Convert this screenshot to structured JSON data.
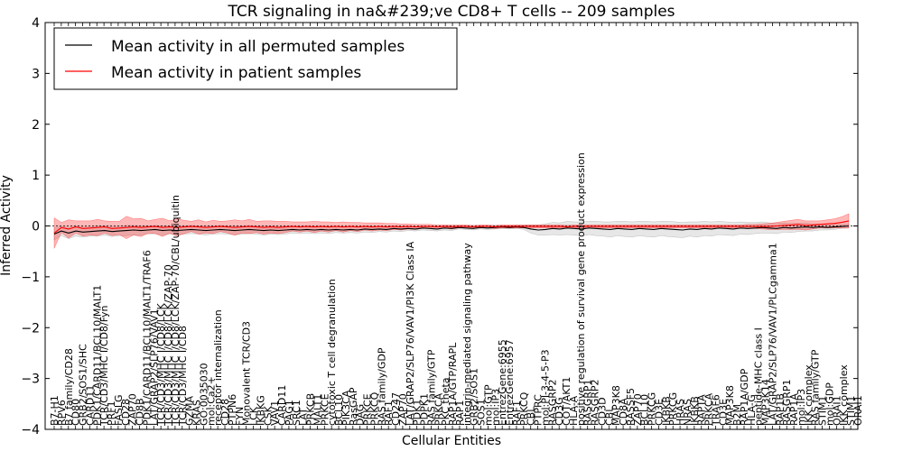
{
  "chart_data": {
    "type": "line",
    "title": "TCR signaling in na&#239;ve CD8+ T cells -- 209 samples",
    "xlabel": "Cellular Entities",
    "ylabel": "Inferred Activity",
    "ylim": [
      -4,
      4
    ],
    "yticks": [
      -4,
      -3,
      -2,
      -1,
      0,
      1,
      2,
      3,
      4
    ],
    "ytick_labels": [
      "−4",
      "−3",
      "−2",
      "−1",
      "0",
      "1",
      "2",
      "3",
      "4"
    ],
    "legend": {
      "placement": "top-left",
      "entries": [
        {
          "label": "Mean activity in all permuted samples",
          "color": "#000000"
        },
        {
          "label": "Mean activity in patient samples",
          "color": "#ff0000"
        }
      ]
    },
    "band_colors": {
      "permuted": "#bbbbbb",
      "patient": "#ff0000"
    },
    "entity_labels": [
      "B7-H1",
      "RPV6",
      "B7 family/CD28",
      "CD80",
      "GRB2/SOS1/SHC",
      "CARD11",
      "PDK1/CARD11/BCL10/MALT1",
      "TCR/CD3/MHC I/CD8/Fyn",
      "PRF1",
      "FASLG",
      "CD28",
      "ZAP70",
      "CD8B",
      "PDK1/CARD11/BCL10/MALT1/TRAF6",
      "LAT/GRAP2/SLP76/VAV1",
      "TCR/CD3/MHC I/CD8/LCK",
      "TCR/CD3/MHC I/CD8/LCK/ZAP-70",
      "TCR/CD3/MHC I/CD8/LCK/ZAP-70/CBL/ubiquitin",
      "TCR/CD3/MHC I/CD8",
      "GZMA",
      "KRAS",
      "GO:0035030",
      "mol:Ca2+",
      "receptor internalization",
      "CD28",
      "PTPN6",
      "FYN",
      "Monovalent TCR/CD3",
      "LCK",
      "IKBKG",
      "CSK",
      "VAV1",
      "CARD11",
      "PAG1",
      "SRC1",
      "LAT",
      "PRKCB",
      "MALT1",
      "PRKCE",
      "cytotoxic T cell degranulation",
      "BCL10",
      "PIK3CA",
      "RasGAP",
      "DAG",
      "PRKCE",
      "PRKCQ",
      "RAS family/GDP",
      "RAF1",
      "CD247",
      "ZAP70",
      "LAT/GRAP2/SLP76/VAV1/PI3K Class IA",
      "PDK1",
      "PDPK1",
      "RAS family/GTP",
      "PRKCA",
      "PKC theta",
      "RAP1A/GTP/RAPL",
      "RAP1",
      "integrin-mediated signaling pathway",
      "GRB2/SOS1",
      "SOS1",
      "mol:GTP",
      "mol:IP3",
      "EntrezGene:6955",
      "EntrezGene:6957",
      "RAF1",
      "PRKCQ",
      "CBL",
      "PTPRC",
      "mol:PI-3-4-5-P3",
      "RASGRP2",
      "CD3G",
      "COT/AKT1",
      "HLA-A",
      "positive regulation of survival gene product expression",
      "RASGRP1",
      "RASGRP2",
      "CD3D",
      "CBL",
      "MAP3K8",
      "CD8A",
      "RASSF5",
      "ZAP70",
      "BCL10",
      "PRKCG",
      "CD3E",
      "IKBKB",
      "PRKCG",
      "HRAS",
      "NRAS",
      "IKBKB",
      "RAPTA",
      "PRKCA",
      "TRAF6",
      "CD3E",
      "MAP3K8",
      "B2M",
      "RAP1A/GDP",
      "HLA-G",
      "peptide-MHC class I",
      "MAP3K14",
      "LAT/GRAP2/SLP76/VAV1/PLCgamma1",
      "RAP1B",
      "RASGRP1",
      "RAP1A",
      "mol:IP3",
      "IKK complex",
      "RAS family/GTP",
      "STIM1",
      "mol:GDP",
      "ORAI1",
      "IKK complex",
      "STIM1",
      "ORAI1"
    ],
    "patient_mean": [
      -0.14,
      -0.03,
      -0.06,
      -0.02,
      -0.05,
      -0.04,
      -0.03,
      -0.02,
      -0.05,
      -0.04,
      -0.03,
      -0.02,
      -0.03,
      -0.02,
      -0.01,
      -0.03,
      -0.02,
      -0.03,
      -0.02,
      -0.01,
      -0.02,
      -0.03,
      -0.02,
      -0.01,
      -0.02,
      -0.03,
      -0.02,
      -0.01,
      -0.02,
      -0.03,
      -0.02,
      -0.03,
      -0.02,
      -0.01,
      -0.02,
      -0.01,
      -0.02,
      -0.01,
      -0.02,
      -0.01,
      -0.02,
      -0.01,
      -0.02,
      -0.01,
      -0.02,
      -0.01,
      -0.02,
      -0.01,
      -0.02,
      -0.01,
      -0.02,
      -0.01,
      -0.01,
      -0.02,
      -0.01,
      -0.02,
      -0.01,
      -0.01,
      -0.02,
      -0.01,
      -0.01,
      -0.02,
      -0.01,
      -0.01,
      -0.01,
      -0.01,
      -0.01,
      -0.01,
      -0.01,
      -0.01,
      -0.01,
      -0.02,
      -0.01,
      -0.01,
      -0.01,
      -0.01,
      -0.01,
      -0.01,
      -0.01,
      -0.01,
      -0.01,
      -0.01,
      -0.01,
      -0.01,
      -0.01,
      -0.01,
      -0.01,
      -0.01,
      -0.01,
      -0.01,
      -0.01,
      -0.01,
      -0.01,
      -0.01,
      -0.01,
      -0.01,
      -0.01,
      -0.01,
      -0.01,
      -0.01,
      0.0,
      0.01,
      0.02,
      0.03,
      0.01,
      0.02,
      0.03,
      0.04,
      0.05,
      0.07,
      0.1
    ],
    "patient_band": [
      0.3,
      0.1,
      0.18,
      0.12,
      0.15,
      0.14,
      0.16,
      0.12,
      0.14,
      0.13,
      0.22,
      0.16,
      0.18,
      0.12,
      0.14,
      0.18,
      0.12,
      0.17,
      0.13,
      0.1,
      0.14,
      0.11,
      0.13,
      0.1,
      0.12,
      0.15,
      0.12,
      0.14,
      0.11,
      0.13,
      0.12,
      0.12,
      0.11,
      0.09,
      0.1,
      0.09,
      0.11,
      0.09,
      0.1,
      0.08,
      0.1,
      0.08,
      0.09,
      0.07,
      0.08,
      0.07,
      0.07,
      0.06,
      0.06,
      0.05,
      0.05,
      0.04,
      0.04,
      0.04,
      0.03,
      0.04,
      0.03,
      0.03,
      0.03,
      0.03,
      0.03,
      0.03,
      0.03,
      0.03,
      0.03,
      0.03,
      0.03,
      0.03,
      0.03,
      0.03,
      0.03,
      0.03,
      0.03,
      0.03,
      0.03,
      0.03,
      0.03,
      0.03,
      0.03,
      0.03,
      0.03,
      0.03,
      0.03,
      0.03,
      0.03,
      0.03,
      0.03,
      0.03,
      0.03,
      0.03,
      0.03,
      0.03,
      0.03,
      0.03,
      0.03,
      0.03,
      0.04,
      0.04,
      0.05,
      0.06,
      0.07,
      0.08,
      0.09,
      0.1,
      0.09,
      0.08,
      0.07,
      0.08,
      0.09,
      0.11,
      0.14
    ],
    "permuted_mean": [
      -0.16,
      -0.1,
      -0.14,
      -0.1,
      -0.12,
      -0.11,
      -0.1,
      -0.09,
      -0.11,
      -0.1,
      -0.09,
      -0.08,
      -0.09,
      -0.08,
      -0.07,
      -0.09,
      -0.08,
      -0.09,
      -0.08,
      -0.07,
      -0.08,
      -0.09,
      -0.08,
      -0.07,
      -0.08,
      -0.09,
      -0.08,
      -0.07,
      -0.08,
      -0.09,
      -0.08,
      -0.09,
      -0.08,
      -0.07,
      -0.08,
      -0.07,
      -0.08,
      -0.07,
      -0.08,
      -0.07,
      -0.08,
      -0.07,
      -0.08,
      -0.06,
      -0.07,
      -0.06,
      -0.07,
      -0.05,
      -0.06,
      -0.05,
      -0.06,
      -0.04,
      -0.05,
      -0.06,
      -0.04,
      -0.05,
      -0.03,
      -0.04,
      -0.05,
      -0.03,
      -0.04,
      -0.03,
      -0.02,
      -0.03,
      -0.02,
      -0.03,
      -0.06,
      -0.08,
      -0.07,
      -0.05,
      -0.06,
      -0.04,
      -0.05,
      -0.06,
      -0.04,
      -0.05,
      -0.06,
      -0.07,
      -0.05,
      -0.06,
      -0.07,
      -0.05,
      -0.06,
      -0.07,
      -0.05,
      -0.06,
      -0.07,
      -0.08,
      -0.06,
      -0.07,
      -0.05,
      -0.06,
      -0.04,
      -0.05,
      -0.06,
      -0.04,
      -0.05,
      -0.04,
      -0.03,
      -0.04,
      -0.05,
      -0.03,
      -0.04,
      -0.03,
      -0.02,
      -0.03,
      -0.02,
      -0.03,
      -0.02,
      -0.01,
      0.0
    ],
    "permuted_band": [
      0.12,
      0.09,
      0.11,
      0.1,
      0.1,
      0.09,
      0.1,
      0.09,
      0.1,
      0.09,
      0.1,
      0.09,
      0.09,
      0.08,
      0.08,
      0.09,
      0.08,
      0.09,
      0.08,
      0.08,
      0.08,
      0.09,
      0.08,
      0.08,
      0.08,
      0.09,
      0.08,
      0.08,
      0.08,
      0.09,
      0.08,
      0.08,
      0.08,
      0.07,
      0.07,
      0.07,
      0.07,
      0.07,
      0.07,
      0.06,
      0.06,
      0.06,
      0.06,
      0.06,
      0.06,
      0.05,
      0.05,
      0.05,
      0.05,
      0.04,
      0.04,
      0.04,
      0.04,
      0.04,
      0.04,
      0.04,
      0.03,
      0.03,
      0.03,
      0.03,
      0.03,
      0.03,
      0.03,
      0.03,
      0.03,
      0.04,
      0.08,
      0.1,
      0.11,
      0.12,
      0.12,
      0.13,
      0.13,
      0.14,
      0.13,
      0.14,
      0.14,
      0.15,
      0.14,
      0.15,
      0.15,
      0.14,
      0.15,
      0.15,
      0.14,
      0.15,
      0.15,
      0.15,
      0.14,
      0.15,
      0.14,
      0.14,
      0.13,
      0.13,
      0.13,
      0.12,
      0.12,
      0.11,
      0.11,
      0.1,
      0.1,
      0.09,
      0.09,
      0.08,
      0.08,
      0.07,
      0.06,
      0.05,
      0.05,
      0.04,
      0.04
    ]
  }
}
